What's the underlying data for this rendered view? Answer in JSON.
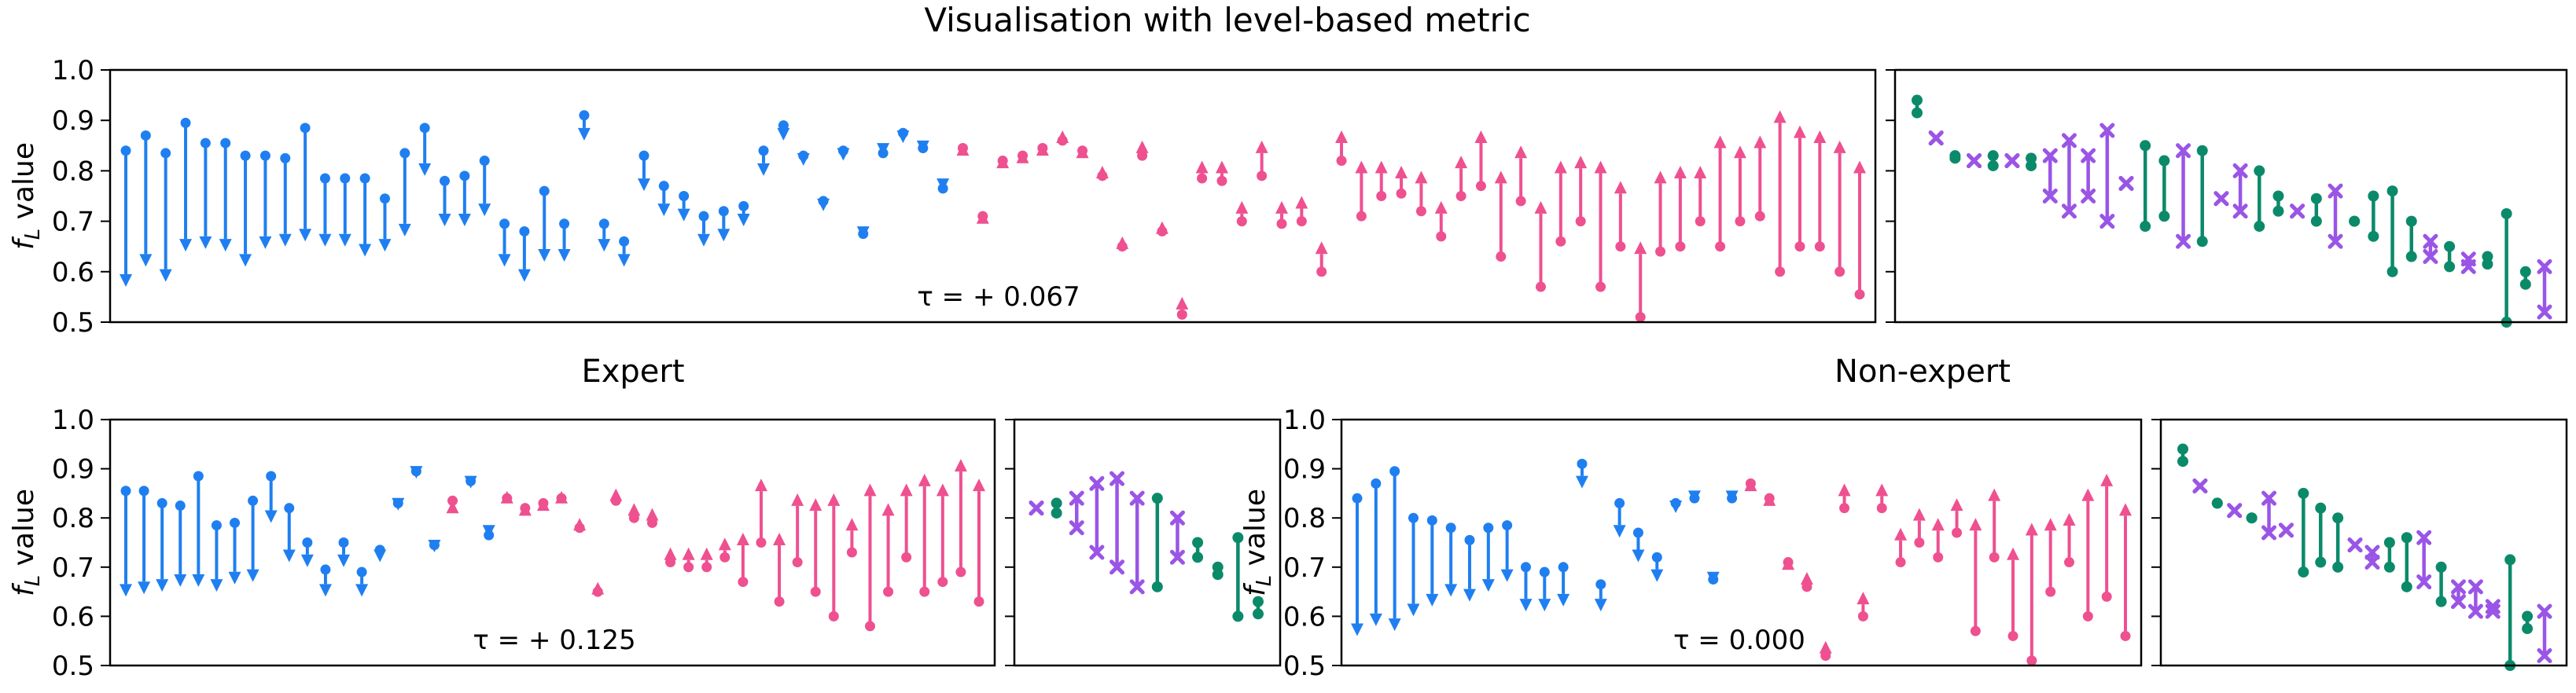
{
  "figure": {
    "title": "Visualisation with level-based metric",
    "ylabel": "f_L value",
    "colors": {
      "blue": "#1F7FF0",
      "pink": "#EE5090",
      "green": "#0B8A6A",
      "purple": "#9A55E6"
    }
  },
  "chart_data": [
    {
      "id": "top",
      "type": "scatter",
      "subtitle": "",
      "tau_label": "τ = + 0.067",
      "ylim": [
        0.5,
        1.0
      ],
      "yticks": [
        "0.5",
        "0.6",
        "0.7",
        "0.8",
        "0.9",
        "1.0"
      ],
      "arrows": [
        [
          0.84,
          0.57
        ],
        [
          0.87,
          0.61
        ],
        [
          0.835,
          0.58
        ],
        [
          0.895,
          0.64
        ],
        [
          0.855,
          0.645
        ],
        [
          0.855,
          0.64
        ],
        [
          0.83,
          0.61
        ],
        [
          0.83,
          0.645
        ],
        [
          0.825,
          0.65
        ],
        [
          0.885,
          0.66
        ],
        [
          0.785,
          0.65
        ],
        [
          0.785,
          0.65
        ],
        [
          0.785,
          0.63
        ],
        [
          0.745,
          0.64
        ],
        [
          0.835,
          0.67
        ],
        [
          0.885,
          0.79
        ],
        [
          0.78,
          0.69
        ],
        [
          0.79,
          0.69
        ],
        [
          0.82,
          0.71
        ],
        [
          0.695,
          0.61
        ],
        [
          0.68,
          0.58
        ],
        [
          0.76,
          0.62
        ],
        [
          0.695,
          0.62
        ],
        [
          0.91,
          0.86
        ],
        [
          0.695,
          0.64
        ],
        [
          0.66,
          0.61
        ],
        [
          0.83,
          0.76
        ],
        [
          0.77,
          0.71
        ],
        [
          0.75,
          0.7
        ],
        [
          0.71,
          0.65
        ],
        [
          0.72,
          0.66
        ],
        [
          0.73,
          0.69
        ],
        [
          0.84,
          0.79
        ],
        [
          0.89,
          0.86
        ],
        [
          0.83,
          0.81
        ],
        [
          0.74,
          0.72
        ],
        [
          0.84,
          0.82
        ],
        [
          0.675,
          0.665
        ],
        [
          0.835,
          0.83
        ],
        [
          0.875,
          0.855
        ],
        [
          0.845,
          0.835
        ],
        [
          0.765,
          0.76
        ],
        [
          0.845,
          0.855
        ],
        [
          0.71,
          0.72
        ],
        [
          0.82,
          0.83
        ],
        [
          0.83,
          0.84
        ],
        [
          0.845,
          0.855
        ],
        [
          0.86,
          0.88
        ],
        [
          0.84,
          0.85
        ],
        [
          0.79,
          0.81
        ],
        [
          0.65,
          0.67
        ],
        [
          0.83,
          0.86
        ],
        [
          0.68,
          0.7
        ],
        [
          0.515,
          0.55
        ],
        [
          0.785,
          0.82
        ],
        [
          0.78,
          0.82
        ],
        [
          0.7,
          0.74
        ],
        [
          0.79,
          0.86
        ],
        [
          0.695,
          0.74
        ],
        [
          0.7,
          0.75
        ],
        [
          0.6,
          0.66
        ],
        [
          0.82,
          0.88
        ],
        [
          0.71,
          0.82
        ],
        [
          0.75,
          0.82
        ],
        [
          0.755,
          0.81
        ],
        [
          0.72,
          0.8
        ],
        [
          0.67,
          0.74
        ],
        [
          0.75,
          0.83
        ],
        [
          0.77,
          0.88
        ],
        [
          0.63,
          0.8
        ],
        [
          0.74,
          0.85
        ],
        [
          0.57,
          0.74
        ],
        [
          0.66,
          0.82
        ],
        [
          0.7,
          0.83
        ],
        [
          0.57,
          0.82
        ],
        [
          0.65,
          0.78
        ],
        [
          0.51,
          0.66
        ],
        [
          0.64,
          0.8
        ],
        [
          0.65,
          0.81
        ],
        [
          0.7,
          0.81
        ],
        [
          0.65,
          0.87
        ],
        [
          0.7,
          0.85
        ],
        [
          0.71,
          0.87
        ],
        [
          0.6,
          0.92
        ],
        [
          0.65,
          0.89
        ],
        [
          0.65,
          0.88
        ],
        [
          0.6,
          0.86
        ],
        [
          0.555,
          0.82
        ]
      ],
      "dumbbells": [
        [
          "green",
          0.94,
          0.915
        ],
        [
          "purple",
          0.865,
          0.865
        ],
        [
          "green",
          0.83,
          0.825
        ],
        [
          "purple",
          0.82,
          0.82
        ],
        [
          "green",
          0.83,
          0.81
        ],
        [
          "purple",
          0.82,
          0.82
        ],
        [
          "green",
          0.825,
          0.81
        ],
        [
          "purple",
          0.83,
          0.75
        ],
        [
          "purple",
          0.86,
          0.72
        ],
        [
          "purple",
          0.83,
          0.75
        ],
        [
          "purple",
          0.88,
          0.7
        ],
        [
          "purple",
          0.775,
          0.775
        ],
        [
          "green",
          0.85,
          0.69
        ],
        [
          "green",
          0.82,
          0.71
        ],
        [
          "purple",
          0.84,
          0.66
        ],
        [
          "green",
          0.84,
          0.66
        ],
        [
          "purple",
          0.745,
          0.745
        ],
        [
          "purple",
          0.8,
          0.72
        ],
        [
          "green",
          0.8,
          0.69
        ],
        [
          "green",
          0.75,
          0.72
        ],
        [
          "purple",
          0.72,
          0.72
        ],
        [
          "green",
          0.745,
          0.7
        ],
        [
          "purple",
          0.76,
          0.66
        ],
        [
          "green",
          0.7,
          0.7
        ],
        [
          "green",
          0.75,
          0.67
        ],
        [
          "green",
          0.76,
          0.6
        ],
        [
          "green",
          0.7,
          0.63
        ],
        [
          "purple",
          0.66,
          0.63
        ],
        [
          "green",
          0.65,
          0.61
        ],
        [
          "purple",
          0.625,
          0.61
        ],
        [
          "green",
          0.63,
          0.615
        ],
        [
          "green",
          0.715,
          0.5
        ],
        [
          "green",
          0.6,
          0.575
        ],
        [
          "purple",
          0.61,
          0.52
        ]
      ]
    },
    {
      "id": "expert",
      "type": "scatter",
      "subtitle": "Expert",
      "tau_label": "τ = + 0.125",
      "ylim": [
        0.5,
        1.0
      ],
      "yticks": [
        "0.5",
        "0.6",
        "0.7",
        "0.8",
        "0.9",
        "1.0"
      ],
      "arrows": [
        [
          0.855,
          0.64
        ],
        [
          0.855,
          0.645
        ],
        [
          0.83,
          0.65
        ],
        [
          0.825,
          0.66
        ],
        [
          0.885,
          0.66
        ],
        [
          0.785,
          0.65
        ],
        [
          0.79,
          0.665
        ],
        [
          0.835,
          0.67
        ],
        [
          0.885,
          0.79
        ],
        [
          0.82,
          0.71
        ],
        [
          0.75,
          0.7
        ],
        [
          0.695,
          0.64
        ],
        [
          0.75,
          0.7
        ],
        [
          0.69,
          0.64
        ],
        [
          0.735,
          0.71
        ],
        [
          0.83,
          0.815
        ],
        [
          0.895,
          0.88
        ],
        [
          0.745,
          0.73
        ],
        [
          0.835,
          0.835
        ],
        [
          0.875,
          0.86
        ],
        [
          0.765,
          0.76
        ],
        [
          0.84,
          0.855
        ],
        [
          0.82,
          0.83
        ],
        [
          0.83,
          0.84
        ],
        [
          0.84,
          0.855
        ],
        [
          0.78,
          0.8
        ],
        [
          0.65,
          0.67
        ],
        [
          0.835,
          0.86
        ],
        [
          0.8,
          0.83
        ],
        [
          0.79,
          0.82
        ],
        [
          0.71,
          0.74
        ],
        [
          0.7,
          0.74
        ],
        [
          0.7,
          0.74
        ],
        [
          0.72,
          0.76
        ],
        [
          0.67,
          0.77
        ],
        [
          0.75,
          0.88
        ],
        [
          0.63,
          0.77
        ],
        [
          0.71,
          0.85
        ],
        [
          0.65,
          0.84
        ],
        [
          0.6,
          0.85
        ],
        [
          0.73,
          0.8
        ],
        [
          0.58,
          0.87
        ],
        [
          0.65,
          0.83
        ],
        [
          0.72,
          0.87
        ],
        [
          0.65,
          0.89
        ],
        [
          0.67,
          0.87
        ],
        [
          0.69,
          0.92
        ],
        [
          0.63,
          0.88
        ]
      ],
      "dumbbells": [
        [
          "purple",
          0.82,
          0.82
        ],
        [
          "green",
          0.83,
          0.81
        ],
        [
          "purple",
          0.84,
          0.78
        ],
        [
          "purple",
          0.87,
          0.73
        ],
        [
          "purple",
          0.88,
          0.7
        ],
        [
          "purple",
          0.84,
          0.66
        ],
        [
          "green",
          0.84,
          0.66
        ],
        [
          "purple",
          0.8,
          0.72
        ],
        [
          "green",
          0.75,
          0.72
        ],
        [
          "green",
          0.7,
          0.685
        ],
        [
          "green",
          0.76,
          0.6
        ],
        [
          "green",
          0.63,
          0.605
        ]
      ]
    },
    {
      "id": "nonexpert",
      "type": "scatter",
      "subtitle": "Non-expert",
      "tau_label": "τ = 0.000",
      "ylim": [
        0.5,
        1.0
      ],
      "yticks": [
        "0.5",
        "0.6",
        "0.7",
        "0.8",
        "0.9",
        "1.0"
      ],
      "arrows": [
        [
          0.84,
          0.56
        ],
        [
          0.87,
          0.58
        ],
        [
          0.895,
          0.57
        ],
        [
          0.8,
          0.6
        ],
        [
          0.795,
          0.62
        ],
        [
          0.78,
          0.64
        ],
        [
          0.755,
          0.63
        ],
        [
          0.78,
          0.65
        ],
        [
          0.785,
          0.67
        ],
        [
          0.7,
          0.61
        ],
        [
          0.69,
          0.61
        ],
        [
          0.7,
          0.62
        ],
        [
          0.91,
          0.86
        ],
        [
          0.665,
          0.61
        ],
        [
          0.83,
          0.76
        ],
        [
          0.77,
          0.71
        ],
        [
          0.72,
          0.67
        ],
        [
          0.83,
          0.81
        ],
        [
          0.84,
          0.83
        ],
        [
          0.675,
          0.665
        ],
        [
          0.84,
          0.83
        ],
        [
          0.87,
          0.88
        ],
        [
          0.84,
          0.85
        ],
        [
          0.71,
          0.72
        ],
        [
          0.66,
          0.69
        ],
        [
          0.52,
          0.55
        ],
        [
          0.82,
          0.87
        ],
        [
          0.6,
          0.65
        ],
        [
          0.82,
          0.87
        ],
        [
          0.71,
          0.78
        ],
        [
          0.75,
          0.82
        ],
        [
          0.72,
          0.8
        ],
        [
          0.77,
          0.84
        ],
        [
          0.57,
          0.8
        ],
        [
          0.72,
          0.86
        ],
        [
          0.56,
          0.74
        ],
        [
          0.51,
          0.79
        ],
        [
          0.65,
          0.8
        ],
        [
          0.71,
          0.81
        ],
        [
          0.6,
          0.86
        ],
        [
          0.64,
          0.89
        ],
        [
          0.56,
          0.83
        ]
      ],
      "dumbbells": [
        [
          "green",
          0.94,
          0.915
        ],
        [
          "purple",
          0.865,
          0.865
        ],
        [
          "green",
          0.83,
          0.83
        ],
        [
          "purple",
          0.815,
          0.815
        ],
        [
          "green",
          0.8,
          0.8
        ],
        [
          "purple",
          0.84,
          0.77
        ],
        [
          "purple",
          0.775,
          0.775
        ],
        [
          "green",
          0.85,
          0.69
        ],
        [
          "green",
          0.82,
          0.71
        ],
        [
          "green",
          0.8,
          0.7
        ],
        [
          "purple",
          0.745,
          0.745
        ],
        [
          "purple",
          0.73,
          0.71
        ],
        [
          "green",
          0.75,
          0.7
        ],
        [
          "green",
          0.76,
          0.66
        ],
        [
          "purple",
          0.76,
          0.67
        ],
        [
          "green",
          0.7,
          0.63
        ],
        [
          "purple",
          0.66,
          0.63
        ],
        [
          "purple",
          0.66,
          0.61
        ],
        [
          "purple",
          0.62,
          0.61
        ],
        [
          "green",
          0.715,
          0.5
        ],
        [
          "green",
          0.6,
          0.575
        ],
        [
          "purple",
          0.61,
          0.52
        ]
      ]
    }
  ]
}
